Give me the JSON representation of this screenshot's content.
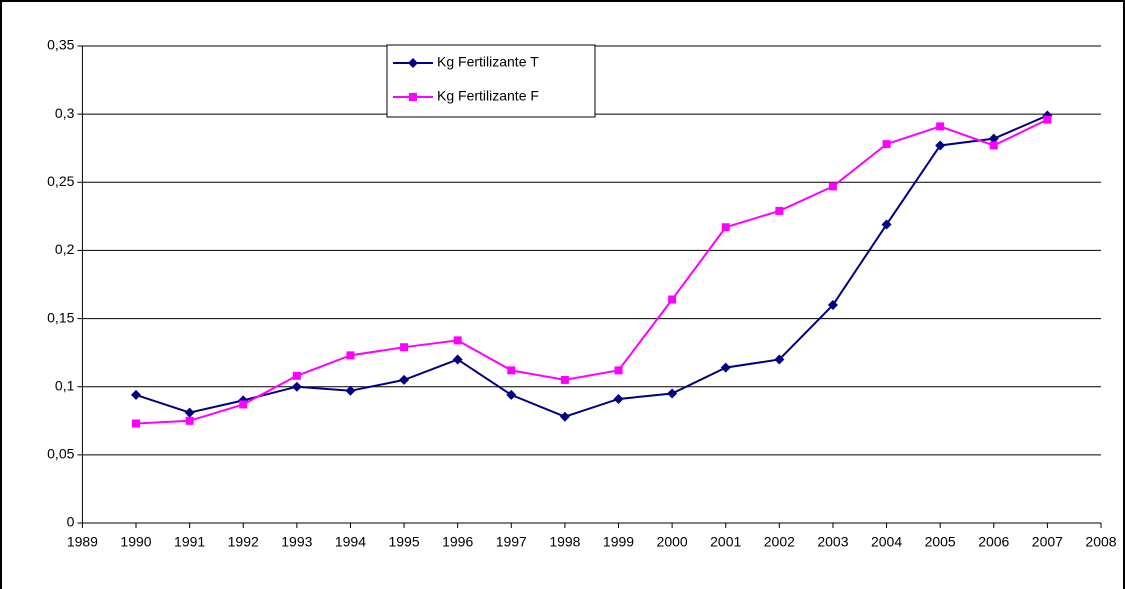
{
  "chart_data": {
    "type": "line",
    "x": [
      1990,
      1991,
      1992,
      1993,
      1994,
      1995,
      1996,
      1997,
      1998,
      1999,
      2000,
      2001,
      2002,
      2003,
      2004,
      2005,
      2006,
      2007
    ],
    "series": [
      {
        "name": "Kg Fertilizante T",
        "color": "#000080",
        "marker": "diamond",
        "values": [
          0.094,
          0.081,
          0.09,
          0.1,
          0.097,
          0.105,
          0.12,
          0.094,
          0.078,
          0.091,
          0.095,
          0.114,
          0.12,
          0.16,
          0.219,
          0.277,
          0.282,
          0.299
        ]
      },
      {
        "name": "Kg Fertilizante F",
        "color": "#ff00ff",
        "marker": "square",
        "values": [
          0.073,
          0.075,
          0.087,
          0.108,
          0.123,
          0.129,
          0.134,
          0.112,
          0.105,
          0.112,
          0.164,
          0.217,
          0.229,
          0.247,
          0.278,
          0.291,
          0.277,
          0.296
        ]
      }
    ],
    "xlim": [
      1989,
      2008
    ],
    "xticks": [
      1989,
      1990,
      1991,
      1992,
      1993,
      1994,
      1995,
      1996,
      1997,
      1998,
      1999,
      2000,
      2001,
      2002,
      2003,
      2004,
      2005,
      2006,
      2007,
      2008
    ],
    "ylim": [
      0,
      0.35
    ],
    "yticks": [
      0,
      {
        "value": 0.05,
        "label": "0,05"
      },
      {
        "value": 0.1,
        "label": "0,1"
      },
      {
        "value": 0.15,
        "label": "0,15"
      },
      {
        "value": 0.2,
        "label": "0,2"
      },
      {
        "value": 0.25,
        "label": "0,25"
      },
      {
        "value": 0.3,
        "label": "0,3"
      },
      {
        "value": 0.35,
        "label": "0,35"
      }
    ],
    "grid": true,
    "legend": "top"
  }
}
